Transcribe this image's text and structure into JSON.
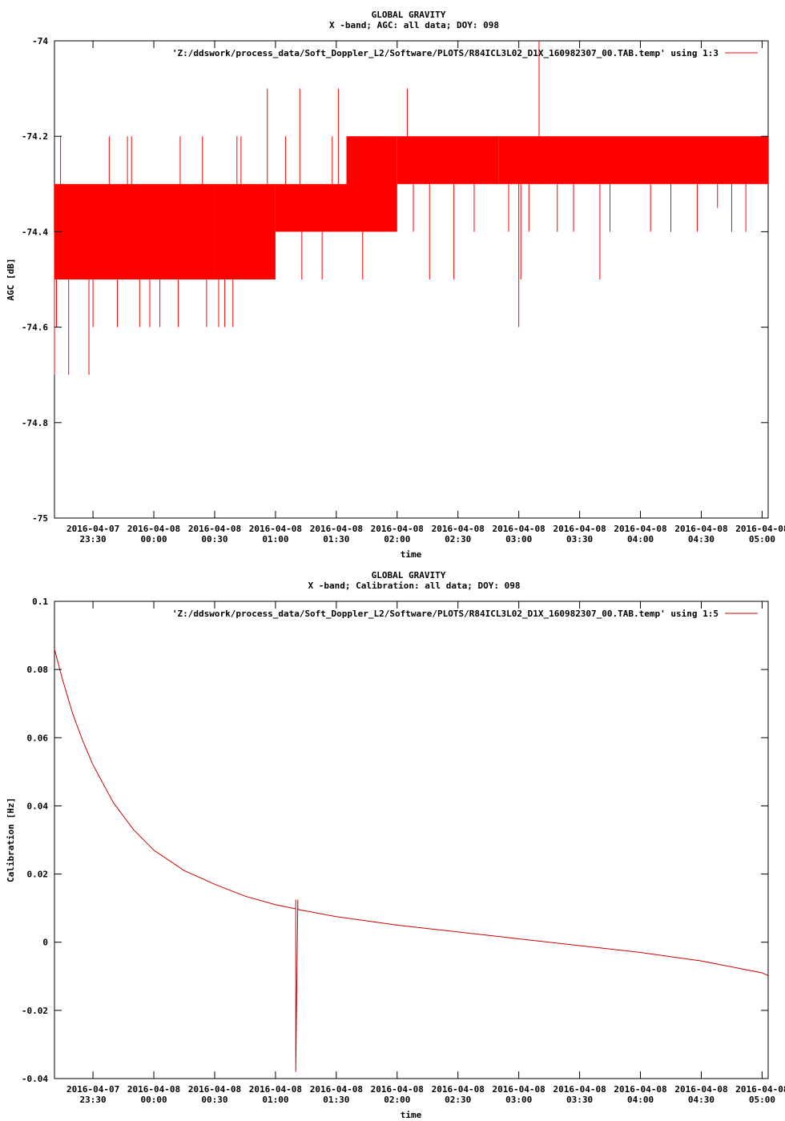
{
  "chart_data": [
    {
      "type": "line",
      "title": "GLOBAL GRAVITY",
      "subtitle": "X -band; AGC: all data; DOY: 098",
      "xlabel": "time",
      "ylabel": "AGC [dB]",
      "xlim": [
        "2016-04-07 23:11",
        "2016-04-08 05:03"
      ],
      "ylim": [
        -75,
        -74
      ],
      "grid": false,
      "legend_position": "top-right",
      "x_ticks": [
        {
          "date": "2016-04-07",
          "time": "23:30",
          "at": "2016-04-07 23:30"
        },
        {
          "date": "2016-04-08",
          "time": "00:00",
          "at": "2016-04-08 00:00"
        },
        {
          "date": "2016-04-08",
          "time": "00:30",
          "at": "2016-04-08 00:30"
        },
        {
          "date": "2016-04-08",
          "time": "01:00",
          "at": "2016-04-08 01:00"
        },
        {
          "date": "2016-04-08",
          "time": "01:30",
          "at": "2016-04-08 01:30"
        },
        {
          "date": "2016-04-08",
          "time": "02:00",
          "at": "2016-04-08 02:00"
        },
        {
          "date": "2016-04-08",
          "time": "02:30",
          "at": "2016-04-08 02:30"
        },
        {
          "date": "2016-04-08",
          "time": "03:00",
          "at": "2016-04-08 03:00"
        },
        {
          "date": "2016-04-08",
          "time": "03:30",
          "at": "2016-04-08 03:30"
        },
        {
          "date": "2016-04-08",
          "time": "04:00",
          "at": "2016-04-08 04:00"
        },
        {
          "date": "2016-04-08",
          "time": "04:30",
          "at": "2016-04-08 04:30"
        },
        {
          "date": "2016-04-08",
          "time": "05:00",
          "at": "2016-04-08 05:00"
        }
      ],
      "y_ticks": [
        {
          "value": -74,
          "label": "-74"
        },
        {
          "value": -74.2,
          "label": "-74.2"
        },
        {
          "value": -74.4,
          "label": "-74.4"
        },
        {
          "value": -74.6,
          "label": "-74.6"
        },
        {
          "value": -74.8,
          "label": "-74.8"
        },
        {
          "value": -75,
          "label": "-75"
        }
      ],
      "series": [
        {
          "name": "'Z:/ddswork/process_data/Soft_Doppler_L2/Software/PLOTS/R84ICL3L02_D1X_160982307_00.TAB.temp' using 1:3",
          "color": "#ff0000",
          "bands": [
            {
              "x": [
                "2016-04-07 23:11",
                "2016-04-08 00:30"
              ],
              "y": [
                -74.5,
                -74.3
              ]
            },
            {
              "x": [
                "2016-04-08 00:30",
                "2016-04-08 01:00"
              ],
              "y": [
                -74.5,
                -74.3
              ]
            },
            {
              "x": [
                "2016-04-08 01:00",
                "2016-04-08 01:35"
              ],
              "y": [
                -74.4,
                -74.3
              ]
            },
            {
              "x": [
                "2016-04-08 01:35",
                "2016-04-08 02:00"
              ],
              "y": [
                -74.4,
                -74.2
              ]
            },
            {
              "x": [
                "2016-04-08 02:00",
                "2016-04-08 02:50"
              ],
              "y": [
                -74.3,
                -74.2
              ]
            },
            {
              "x": [
                "2016-04-08 02:50",
                "2016-04-08 05:03"
              ],
              "y": [
                -74.3,
                -74.2
              ]
            }
          ],
          "spikes": [
            {
              "x": "2016-04-07 23:11",
              "y": [
                -74.7,
                -74.4
              ]
            },
            {
              "x": "2016-04-07 23:12",
              "y": [
                -74.6,
                -74.3
              ]
            },
            {
              "x": "2016-04-07 23:14",
              "y": [
                -74.4,
                -74.2
              ]
            },
            {
              "x": "2016-04-07 23:18",
              "y": [
                -74.7,
                -74.5
              ]
            },
            {
              "x": "2016-04-07 23:28",
              "y": [
                -74.7,
                -74.5
              ]
            },
            {
              "x": "2016-04-07 23:30",
              "y": [
                -74.6,
                -74.5
              ]
            },
            {
              "x": "2016-04-07 23:38",
              "y": [
                -74.5,
                -74.2
              ]
            },
            {
              "x": "2016-04-07 23:42",
              "y": [
                -74.6,
                -74.5
              ]
            },
            {
              "x": "2016-04-07 23:47",
              "y": [
                -74.5,
                -74.2
              ]
            },
            {
              "x": "2016-04-07 23:49",
              "y": [
                -74.5,
                -74.2
              ]
            },
            {
              "x": "2016-04-07 23:53",
              "y": [
                -74.6,
                -74.5
              ]
            },
            {
              "x": "2016-04-07 23:58",
              "y": [
                -74.6,
                -74.5
              ]
            },
            {
              "x": "2016-04-08 00:03",
              "y": [
                -74.6,
                -74.5
              ]
            },
            {
              "x": "2016-04-08 00:12",
              "y": [
                -74.6,
                -74.5
              ]
            },
            {
              "x": "2016-04-08 00:13",
              "y": [
                -74.4,
                -74.2
              ]
            },
            {
              "x": "2016-04-08 00:24",
              "y": [
                -74.4,
                -74.2
              ]
            },
            {
              "x": "2016-04-08 00:26",
              "y": [
                -74.6,
                -74.5
              ]
            },
            {
              "x": "2016-04-08 00:32",
              "y": [
                -74.6,
                -74.5
              ]
            },
            {
              "x": "2016-04-08 00:35",
              "y": [
                -74.6,
                -74.5
              ]
            },
            {
              "x": "2016-04-08 00:39",
              "y": [
                -74.6,
                -74.5
              ]
            },
            {
              "x": "2016-04-08 00:41",
              "y": [
                -74.3,
                -74.2
              ]
            },
            {
              "x": "2016-04-08 00:43",
              "y": [
                -74.3,
                -74.2
              ]
            },
            {
              "x": "2016-04-08 00:56",
              "y": [
                -74.3,
                -74.1
              ]
            },
            {
              "x": "2016-04-08 01:05",
              "y": [
                -74.3,
                -74.2
              ]
            },
            {
              "x": "2016-04-08 01:12",
              "y": [
                -74.3,
                -74.1
              ]
            },
            {
              "x": "2016-04-08 01:13",
              "y": [
                -74.5,
                -74.4
              ]
            },
            {
              "x": "2016-04-08 01:23",
              "y": [
                -74.5,
                -74.4
              ]
            },
            {
              "x": "2016-04-08 01:28",
              "y": [
                -74.3,
                -74.2
              ]
            },
            {
              "x": "2016-04-08 01:31",
              "y": [
                -74.3,
                -74.1
              ]
            },
            {
              "x": "2016-04-08 01:43",
              "y": [
                -74.5,
                -74.4
              ]
            },
            {
              "x": "2016-04-08 01:51",
              "y": [
                -74.4,
                -74.2
              ]
            },
            {
              "x": "2016-04-08 02:05",
              "y": [
                -74.3,
                -74.1
              ]
            },
            {
              "x": "2016-04-08 02:08",
              "y": [
                -74.4,
                -74.3
              ]
            },
            {
              "x": "2016-04-08 02:16",
              "y": [
                -74.5,
                -74.3
              ]
            },
            {
              "x": "2016-04-08 02:28",
              "y": [
                -74.5,
                -74.3
              ]
            },
            {
              "x": "2016-04-08 02:38",
              "y": [
                -74.4,
                -74.3
              ]
            },
            {
              "x": "2016-04-08 02:55",
              "y": [
                -74.4,
                -74.3
              ]
            },
            {
              "x": "2016-04-08 03:00",
              "y": [
                -74.6,
                -74.3
              ]
            },
            {
              "x": "2016-04-08 03:01",
              "y": [
                -74.5,
                -74.3
              ]
            },
            {
              "x": "2016-04-08 03:05",
              "y": [
                -74.4,
                -74.3
              ]
            },
            {
              "x": "2016-04-08 03:10",
              "y": [
                -74.3,
                -74.0
              ]
            },
            {
              "x": "2016-04-08 03:19",
              "y": [
                -74.4,
                -74.3
              ]
            },
            {
              "x": "2016-04-08 03:27",
              "y": [
                -74.4,
                -74.3
              ]
            },
            {
              "x": "2016-04-08 03:40",
              "y": [
                -74.5,
                -74.3
              ]
            },
            {
              "x": "2016-04-08 03:45",
              "y": [
                -74.4,
                -74.3
              ]
            },
            {
              "x": "2016-04-08 04:05",
              "y": [
                -74.4,
                -74.3
              ]
            },
            {
              "x": "2016-04-08 04:15",
              "y": [
                -74.4,
                -74.3
              ]
            },
            {
              "x": "2016-04-08 04:28",
              "y": [
                -74.4,
                -74.3
              ]
            },
            {
              "x": "2016-04-08 04:38",
              "y": [
                -74.35,
                -74.3
              ]
            },
            {
              "x": "2016-04-08 04:45",
              "y": [
                -74.4,
                -74.3
              ]
            },
            {
              "x": "2016-04-08 04:52",
              "y": [
                -74.4,
                -74.3
              ]
            }
          ]
        }
      ]
    },
    {
      "type": "line",
      "title": "GLOBAL GRAVITY",
      "subtitle": "X -band; Calibration: all data; DOY: 098",
      "xlabel": "time",
      "ylabel": "Calibration [Hz]",
      "xlim": [
        "2016-04-07 23:11",
        "2016-04-08 05:03"
      ],
      "ylim": [
        -0.04,
        0.1
      ],
      "grid": false,
      "legend_position": "top-right",
      "x_ticks": [
        {
          "date": "2016-04-07",
          "time": "23:30",
          "at": "2016-04-07 23:30"
        },
        {
          "date": "2016-04-08",
          "time": "00:00",
          "at": "2016-04-08 00:00"
        },
        {
          "date": "2016-04-08",
          "time": "00:30",
          "at": "2016-04-08 00:30"
        },
        {
          "date": "2016-04-08",
          "time": "01:00",
          "at": "2016-04-08 01:00"
        },
        {
          "date": "2016-04-08",
          "time": "01:30",
          "at": "2016-04-08 01:30"
        },
        {
          "date": "2016-04-08",
          "time": "02:00",
          "at": "2016-04-08 02:00"
        },
        {
          "date": "2016-04-08",
          "time": "02:30",
          "at": "2016-04-08 02:30"
        },
        {
          "date": "2016-04-08",
          "time": "03:00",
          "at": "2016-04-08 03:00"
        },
        {
          "date": "2016-04-08",
          "time": "03:30",
          "at": "2016-04-08 03:30"
        },
        {
          "date": "2016-04-08",
          "time": "04:00",
          "at": "2016-04-08 04:00"
        },
        {
          "date": "2016-04-08",
          "time": "04:30",
          "at": "2016-04-08 04:30"
        },
        {
          "date": "2016-04-08",
          "time": "05:00",
          "at": "2016-04-08 05:00"
        }
      ],
      "y_ticks": [
        {
          "value": 0.1,
          "label": "0.1"
        },
        {
          "value": 0.08,
          "label": "0.08"
        },
        {
          "value": 0.06,
          "label": "0.06"
        },
        {
          "value": 0.04,
          "label": "0.04"
        },
        {
          "value": 0.02,
          "label": "0.02"
        },
        {
          "value": 0,
          "label": "0"
        },
        {
          "value": -0.02,
          "label": "-0.02"
        },
        {
          "value": -0.04,
          "label": "-0.04"
        }
      ],
      "series": [
        {
          "name": "'Z:/ddswork/process_data/Soft_Doppler_L2/Software/PLOTS/R84ICL3L02_D1X_160982307_00.TAB.temp' using 1:5",
          "color": "#cc0000",
          "points": [
            {
              "x": "2016-04-07 23:11",
              "y": 0.086
            },
            {
              "x": "2016-04-07 23:15",
              "y": 0.077
            },
            {
              "x": "2016-04-07 23:20",
              "y": 0.067
            },
            {
              "x": "2016-04-07 23:25",
              "y": 0.059
            },
            {
              "x": "2016-04-07 23:30",
              "y": 0.052
            },
            {
              "x": "2016-04-07 23:40",
              "y": 0.041
            },
            {
              "x": "2016-04-07 23:50",
              "y": 0.033
            },
            {
              "x": "2016-04-08 00:00",
              "y": 0.027
            },
            {
              "x": "2016-04-08 00:15",
              "y": 0.021
            },
            {
              "x": "2016-04-08 00:30",
              "y": 0.017
            },
            {
              "x": "2016-04-08 00:45",
              "y": 0.0135
            },
            {
              "x": "2016-04-08 01:00",
              "y": 0.011
            },
            {
              "x": "2016-04-08 01:10",
              "y": 0.0098
            },
            {
              "x": "2016-04-08 01:10",
              "y": 0.0125
            },
            {
              "x": "2016-04-08 01:10",
              "y": -0.038
            },
            {
              "x": "2016-04-08 01:11",
              "y": 0.0125
            },
            {
              "x": "2016-04-08 01:11",
              "y": 0.0096
            },
            {
              "x": "2016-04-08 01:30",
              "y": 0.0075
            },
            {
              "x": "2016-04-08 02:00",
              "y": 0.005
            },
            {
              "x": "2016-04-08 02:30",
              "y": 0.003
            },
            {
              "x": "2016-04-08 03:00",
              "y": 0.001
            },
            {
              "x": "2016-04-08 03:30",
              "y": -0.001
            },
            {
              "x": "2016-04-08 04:00",
              "y": -0.003
            },
            {
              "x": "2016-04-08 04:30",
              "y": -0.0055
            },
            {
              "x": "2016-04-08 05:00",
              "y": -0.009
            },
            {
              "x": "2016-04-08 05:03",
              "y": -0.0098
            }
          ]
        }
      ]
    }
  ]
}
